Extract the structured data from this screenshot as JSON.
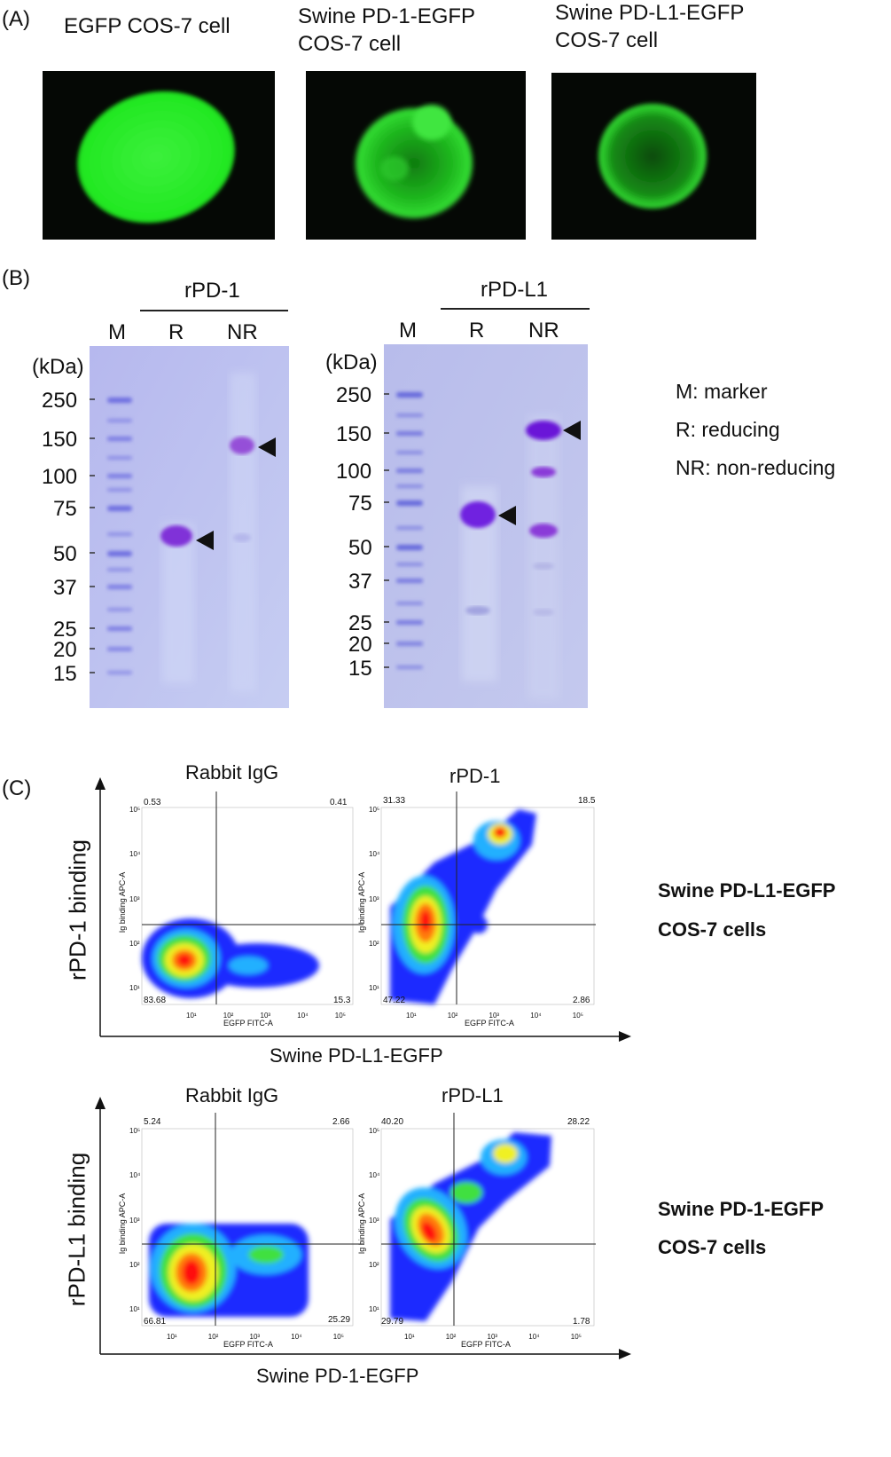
{
  "panels": {
    "a": "(A)",
    "b": "(B)",
    "c": "(C)"
  },
  "panel_a": {
    "titles": {
      "egfp": "EGFP COS-7 cell",
      "pd1_l1": "Swine PD-1-EGFP",
      "pd1_l2": "COS-7 cell",
      "pdl1_l1": "Swine PD-L1-EGFP",
      "pdl1_l2": "COS-7 cell"
    }
  },
  "panel_b": {
    "gel1": {
      "title": "rPD-1",
      "lanes": [
        "M",
        "R",
        "NR"
      ],
      "unit": "(kDa)",
      "markers": [
        "250",
        "150",
        "100",
        "75",
        "50",
        "37",
        "25",
        "20",
        "15"
      ]
    },
    "gel2": {
      "title": "rPD-L1",
      "lanes": [
        "M",
        "R",
        "NR"
      ],
      "unit": "(kDa)",
      "markers": [
        "250",
        "150",
        "100",
        "75",
        "50",
        "37",
        "25",
        "20",
        "15"
      ]
    },
    "legend": [
      "M: marker",
      "R: reducing",
      "NR: non-reducing"
    ]
  },
  "panel_c": {
    "row1": {
      "ylabel": "rPD-1 binding",
      "xlabel": "Swine PD-L1-EGFP",
      "cells_l1": "Swine PD-L1-EGFP",
      "cells_l2": "COS-7 cells",
      "plots": [
        {
          "title": "Rabbit IgG",
          "quadrants": [
            "0.53",
            "0.41",
            "83.68",
            "15.3"
          ]
        },
        {
          "title": "rPD-1",
          "quadrants": [
            "31.33",
            "18.5",
            "47.22",
            "2.86"
          ]
        }
      ]
    },
    "row2": {
      "ylabel": "rPD-L1 binding",
      "xlabel": "Swine PD-1-EGFP",
      "cells_l1": "Swine PD-1-EGFP",
      "cells_l2": "COS-7 cells",
      "plots": [
        {
          "title": "Rabbit IgG",
          "quadrants": [
            "5.24",
            "2.66",
            "66.81",
            "25.29"
          ]
        },
        {
          "title": "rPD-L1",
          "quadrants": [
            "40.20",
            "28.22",
            "29.79",
            "1.78"
          ]
        }
      ]
    },
    "axis_x": "EGFP FITC-A",
    "axis_y": "Ig binding APC-A",
    "xticks": [
      "10¹",
      "10²",
      "10³",
      "10⁴",
      "10⁵"
    ],
    "yticks": [
      "10⁵",
      "10⁴",
      "10³",
      "10²",
      "10¹"
    ]
  }
}
